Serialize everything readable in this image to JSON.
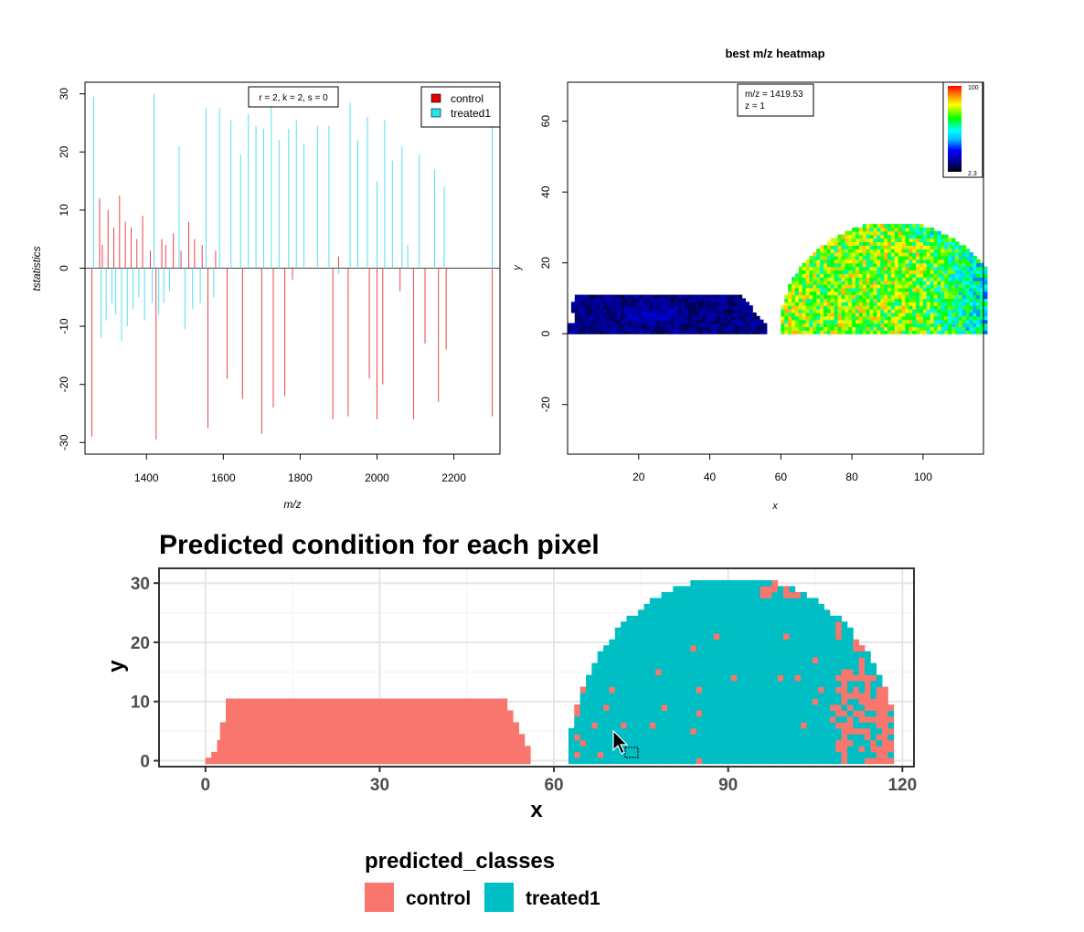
{
  "chart_data": [
    {
      "id": "tstat",
      "type": "bar",
      "title": "",
      "xlabel": "m/z",
      "ylabel": "tstatistics",
      "xlim": [
        1240,
        2320
      ],
      "ylim": [
        -32,
        32
      ],
      "xticks": [
        1400,
        1600,
        1800,
        2000,
        2200
      ],
      "yticks": [
        -30,
        -20,
        -10,
        0,
        10,
        20,
        30
      ],
      "annotation": "r = 2, k = 2, s = 0",
      "legend": {
        "position": "top-right",
        "entries": [
          {
            "label": "control",
            "color": "#e00000"
          },
          {
            "label": "treated1",
            "color": "#22e6f0"
          }
        ]
      },
      "series": [
        {
          "name": "control",
          "color": "#ee4444",
          "x": [
            1258,
            1278,
            1285,
            1300,
            1315,
            1330,
            1345,
            1360,
            1375,
            1390,
            1410,
            1425,
            1440,
            1450,
            1470,
            1490,
            1510,
            1525,
            1545,
            1560,
            1580,
            1610,
            1650,
            1700,
            1730,
            1760,
            1780,
            1885,
            1900,
            1925,
            1980,
            2000,
            2015,
            2060,
            2095,
            2125,
            2160,
            2180,
            2300
          ],
          "values": [
            -29,
            12,
            4,
            10,
            7,
            12.5,
            8,
            7,
            5,
            9,
            3,
            -29.5,
            5,
            4,
            6,
            3,
            8,
            5,
            4,
            -27.5,
            3,
            -19,
            -22.5,
            -28.5,
            -24,
            -22,
            -2,
            -26,
            2,
            -25.5,
            -19,
            -26,
            -20,
            -4,
            -26,
            -13,
            -23,
            -14,
            -25.5
          ]
        },
        {
          "name": "treated1",
          "color": "#55e0f0",
          "x": [
            1262,
            1282,
            1295,
            1310,
            1320,
            1335,
            1350,
            1365,
            1380,
            1395,
            1415,
            1420,
            1432,
            1445,
            1460,
            1485,
            1500,
            1520,
            1540,
            1555,
            1575,
            1590,
            1620,
            1645,
            1665,
            1685,
            1705,
            1725,
            1745,
            1770,
            1790,
            1810,
            1845,
            1875,
            1900,
            1930,
            1950,
            1975,
            2000,
            2020,
            2040,
            2065,
            2080,
            2110,
            2150,
            2175,
            2300
          ],
          "values": [
            29.5,
            -12,
            -9,
            -6,
            -8,
            -12.5,
            -10,
            -7,
            -5,
            -9,
            -6,
            30,
            -8,
            -6,
            -4,
            21,
            -10.5,
            -7,
            -6,
            27.5,
            -5,
            27.5,
            25.5,
            19.5,
            26.5,
            24.5,
            24,
            28.5,
            22,
            24,
            25.5,
            21.5,
            24.5,
            24.5,
            -1,
            28.5,
            22,
            26,
            15,
            25.5,
            18.5,
            21,
            4,
            19.5,
            17,
            14,
            24.5
          ]
        }
      ]
    },
    {
      "id": "mzheatmap",
      "type": "heatmap",
      "title": "best m/z heatmap",
      "xlabel": "x",
      "ylabel": "y",
      "xlim": [
        0,
        117
      ],
      "ylim": [
        -34,
        71
      ],
      "xticks": [
        20,
        40,
        60,
        80,
        100
      ],
      "yticks": [
        -20,
        0,
        20,
        40,
        60
      ],
      "annotation_lines": [
        "m/z = 1419.53",
        "z = 1"
      ],
      "colorbar": {
        "max_label": "100",
        "min_label": "2.3",
        "colors": [
          "#000000",
          "#000080",
          "#0000ff",
          "#00bfff",
          "#00ffff",
          "#00ff00",
          "#ffff00",
          "#ff8000",
          "#ff0000"
        ]
      },
      "regions": [
        {
          "name": "control",
          "mean_intensity": 10,
          "x_range": [
            0,
            56
          ],
          "y_range": [
            0,
            10
          ]
        },
        {
          "name": "treated1",
          "mean_intensity": 65,
          "x_range": [
            60,
            117
          ],
          "y_range": [
            0,
            31
          ]
        }
      ]
    },
    {
      "id": "predicted",
      "type": "heatmap",
      "title": "Predicted condition for each pixel",
      "xlabel": "x",
      "ylabel": "y",
      "xlim": [
        -8,
        122
      ],
      "ylim": [
        -1,
        32.5
      ],
      "xticks": [
        0,
        30,
        60,
        90,
        120
      ],
      "yticks": [
        0,
        10,
        20,
        30
      ],
      "legend_title": "predicted_classes",
      "legend": {
        "position": "bottom",
        "entries": [
          {
            "label": "control",
            "color": "#f8766d"
          },
          {
            "label": "treated1",
            "color": "#00bfc4"
          }
        ]
      },
      "regions": [
        {
          "name": "control",
          "class": "control",
          "x_range": [
            0,
            56
          ],
          "y_range": [
            0,
            10
          ]
        },
        {
          "name": "treated1",
          "class": "treated1",
          "x_range": [
            60,
            118
          ],
          "y_range": [
            0,
            31
          ],
          "misclassified_fraction": 0.08
        }
      ]
    }
  ]
}
